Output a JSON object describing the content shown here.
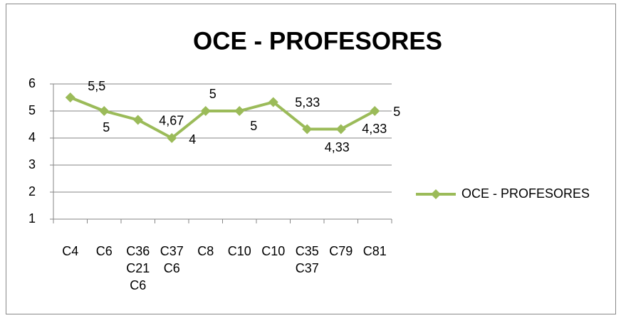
{
  "chart_data": {
    "type": "line",
    "title": "OCE - PROFESORES",
    "categories": [
      "C4",
      "C6",
      "C36 C21 C6",
      "C37 C6",
      "C8",
      "C10",
      "C10",
      "C35 C37",
      "C79",
      "C81"
    ],
    "series": [
      {
        "name": "OCE - PROFESORES",
        "color": "#9bbb59",
        "values": [
          5.5,
          5,
          4.67,
          4,
          5,
          5,
          5.33,
          4.33,
          4.33,
          5
        ],
        "value_labels": [
          "5,5",
          "5",
          "4,67",
          "4",
          "5",
          "5",
          "5,33",
          "4,33",
          "4,33",
          "5"
        ]
      }
    ],
    "ylim": [
      1,
      6
    ],
    "yticks": [
      1,
      2,
      3,
      4,
      5,
      6
    ],
    "grid": true,
    "legend": "right"
  }
}
